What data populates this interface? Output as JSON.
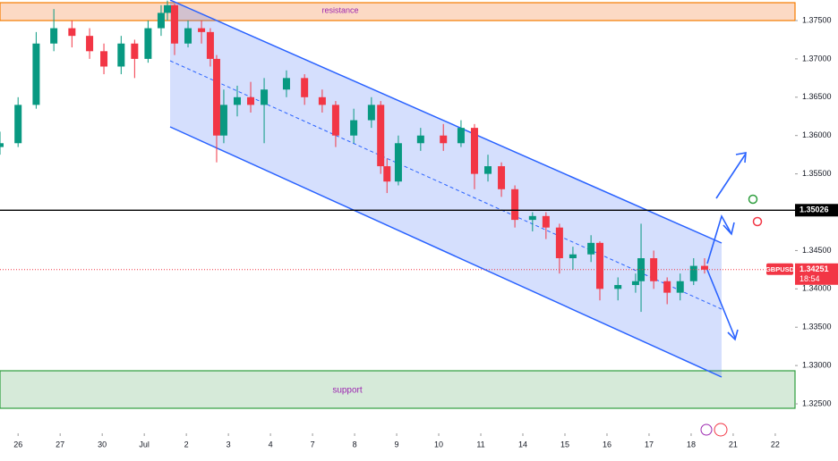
{
  "chart_data": {
    "type": "candlestick",
    "symbol": "GBPUSD",
    "current_price": 1.34251,
    "countdown": "18:54",
    "marked_level": 1.35026,
    "annotations": {
      "resistance": "resistance",
      "support": "support"
    },
    "up_color": "#089981",
    "down_color": "#f23645",
    "xlim": [
      -0.43,
      18.47
    ],
    "ylim": [
      1.32116,
      1.37768
    ],
    "xticks": [
      {
        "value": 0,
        "label": "26"
      },
      {
        "value": 1,
        "label": "27"
      },
      {
        "value": 2,
        "label": "30"
      },
      {
        "value": 3,
        "label": "Jul"
      },
      {
        "value": 4,
        "label": "2"
      },
      {
        "value": 5,
        "label": "3"
      },
      {
        "value": 6,
        "label": "4"
      },
      {
        "value": 7,
        "label": "7"
      },
      {
        "value": 8,
        "label": "8"
      },
      {
        "value": 9,
        "label": "9"
      },
      {
        "value": 10,
        "label": "10"
      },
      {
        "value": 11,
        "label": "11"
      },
      {
        "value": 12,
        "label": "14"
      },
      {
        "value": 13,
        "label": "15"
      },
      {
        "value": 14,
        "label": "16"
      },
      {
        "value": 15,
        "label": "17"
      },
      {
        "value": 16,
        "label": "18"
      },
      {
        "value": 17,
        "label": "21"
      },
      {
        "value": 18,
        "label": "22"
      }
    ],
    "yticks": [
      {
        "value": 1.325,
        "label": "1.32500"
      },
      {
        "value": 1.33,
        "label": "1.33000"
      },
      {
        "value": 1.335,
        "label": "1.33500"
      },
      {
        "value": 1.34,
        "label": "1.34000"
      },
      {
        "value": 1.345,
        "label": "1.34500"
      },
      {
        "value": 1.355,
        "label": "1.35500"
      },
      {
        "value": 1.36,
        "label": "1.36000"
      },
      {
        "value": 1.365,
        "label": "1.36500"
      },
      {
        "value": 1.37,
        "label": "1.37000"
      },
      {
        "value": 1.375,
        "label": "1.37500"
      }
    ],
    "x": [
      -0.43,
      0,
      0.43,
      0.85,
      1.28,
      1.7,
      2.04,
      2.45,
      2.77,
      3.09,
      3.4,
      3.55,
      3.72,
      4.04,
      4.36,
      4.57,
      4.72,
      4.89,
      5.21,
      5.53,
      5.85,
      6.38,
      6.81,
      7.23,
      7.55,
      7.98,
      8.4,
      8.62,
      8.77,
      9.04,
      9.57,
      10.11,
      10.53,
      10.85,
      11.17,
      11.49,
      11.81,
      12.23,
      12.55,
      12.87,
      13.19,
      13.62,
      13.83,
      14.26,
      14.68,
      14.81,
      15.11,
      15.43,
      15.74,
      16.06,
      16.32
    ],
    "open": [
      1.3585,
      1.359,
      1.364,
      1.372,
      1.374,
      1.373,
      1.371,
      1.369,
      1.372,
      1.37,
      1.374,
      1.376,
      1.377,
      1.372,
      1.374,
      1.3735,
      1.37,
      1.36,
      1.364,
      1.365,
      1.364,
      1.366,
      1.3675,
      1.365,
      1.364,
      1.36,
      1.362,
      1.364,
      1.356,
      1.354,
      1.359,
      1.36,
      1.359,
      1.361,
      1.355,
      1.356,
      1.353,
      1.349,
      1.3495,
      1.348,
      1.344,
      1.3445,
      1.346,
      1.34,
      1.3405,
      1.341,
      1.344,
      1.341,
      1.3395,
      1.341,
      1.343
    ],
    "high": [
      1.3605,
      1.365,
      1.3735,
      1.3765,
      1.375,
      1.374,
      1.372,
      1.373,
      1.3725,
      1.375,
      1.377,
      1.3776,
      1.3772,
      1.375,
      1.375,
      1.374,
      1.3705,
      1.366,
      1.3665,
      1.367,
      1.3675,
      1.3685,
      1.368,
      1.366,
      1.3645,
      1.3635,
      1.365,
      1.3645,
      1.357,
      1.36,
      1.361,
      1.3615,
      1.362,
      1.3615,
      1.3575,
      1.3565,
      1.3535,
      1.35,
      1.35,
      1.3485,
      1.3455,
      1.347,
      1.3462,
      1.3415,
      1.342,
      1.3485,
      1.345,
      1.3415,
      1.342,
      1.344,
      1.344
    ],
    "low": [
      1.3575,
      1.3585,
      1.3635,
      1.371,
      1.3715,
      1.37,
      1.368,
      1.368,
      1.3675,
      1.3695,
      1.373,
      1.375,
      1.3705,
      1.3715,
      1.372,
      1.369,
      1.3565,
      1.359,
      1.3625,
      1.363,
      1.359,
      1.365,
      1.364,
      1.363,
      1.3585,
      1.359,
      1.361,
      1.355,
      1.3525,
      1.3535,
      1.358,
      1.358,
      1.3585,
      1.353,
      1.354,
      1.352,
      1.348,
      1.3475,
      1.3465,
      1.342,
      1.3425,
      1.3435,
      1.3385,
      1.3385,
      1.3395,
      1.337,
      1.34,
      1.338,
      1.3385,
      1.3405,
      1.342
    ],
    "close": [
      1.359,
      1.364,
      1.372,
      1.374,
      1.373,
      1.371,
      1.369,
      1.372,
      1.37,
      1.374,
      1.376,
      1.377,
      1.372,
      1.374,
      1.3735,
      1.37,
      1.36,
      1.364,
      1.365,
      1.364,
      1.366,
      1.3675,
      1.365,
      1.364,
      1.36,
      1.362,
      1.364,
      1.356,
      1.354,
      1.359,
      1.36,
      1.359,
      1.361,
      1.355,
      1.356,
      1.353,
      1.349,
      1.3495,
      1.348,
      1.344,
      1.3445,
      1.346,
      1.34,
      1.3405,
      1.341,
      1.344,
      1.341,
      1.3395,
      1.341,
      1.343,
      1.3425
    ]
  }
}
